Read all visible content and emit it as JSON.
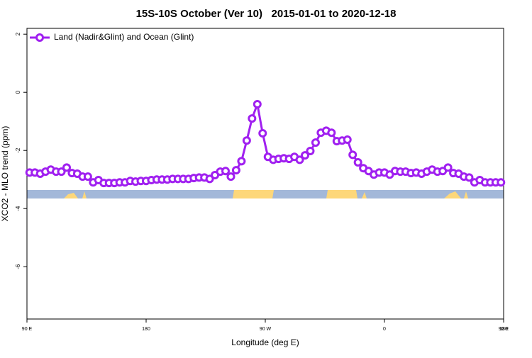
{
  "chart_data": {
    "type": "line",
    "title": "15S-10S October (Ver 10)   2015-01-01 to 2020-12-18",
    "x_label": "Longitude (deg E)",
    "y_label": "XCO2 - MLO trend (ppm)",
    "xlim": [
      90,
      450
    ],
    "xticks": [
      {
        "value": 90,
        "label": "90 E"
      },
      180,
      {
        "value": 270,
        "label": "90 W"
      },
      {
        "value": 360,
        "label": "0"
      },
      {
        "value": 450,
        "label": "90 E"
      },
      {
        "value": 540,
        "label": "180"
      }
    ],
    "ylim": [
      -7.8,
      2.2
    ],
    "yticks": [
      2,
      0,
      -2,
      -4,
      -6
    ],
    "legend": "top-left",
    "x": [
      92,
      96,
      100,
      104,
      108,
      112,
      116,
      120,
      124,
      128,
      132,
      136,
      140,
      144,
      148,
      152,
      156,
      160,
      164,
      168,
      172,
      176,
      180,
      184,
      188,
      192,
      196,
      200,
      204,
      208,
      212,
      216,
      220,
      224,
      228,
      232,
      236,
      240,
      244,
      248,
      252,
      256,
      260,
      264,
      268,
      272,
      276,
      280,
      284,
      288,
      292,
      296,
      300,
      304,
      308,
      312,
      316,
      320,
      324,
      328,
      332,
      336,
      340,
      344,
      348,
      352,
      356,
      360,
      364,
      368,
      372,
      376,
      380,
      384,
      388,
      392,
      396,
      400,
      404,
      408,
      412,
      416,
      420,
      424,
      428,
      432,
      436,
      440,
      444,
      448
    ],
    "series": [
      {
        "name": "Land (Nadir&Glint) and Ocean (Glint)",
        "color": "#a020f0",
        "values": [
          -2.76,
          -2.76,
          -2.8,
          -2.73,
          -2.66,
          -2.73,
          -2.73,
          -2.59,
          -2.78,
          -2.8,
          -2.9,
          -2.9,
          -3.1,
          -3.02,
          -3.12,
          -3.12,
          -3.12,
          -3.1,
          -3.1,
          -3.05,
          -3.07,
          -3.05,
          -3.05,
          -3.02,
          -3.0,
          -3.0,
          -3.0,
          -2.98,
          -2.98,
          -2.98,
          -2.98,
          -2.95,
          -2.93,
          -2.93,
          -2.98,
          -2.85,
          -2.73,
          -2.71,
          -2.9,
          -2.68,
          -2.37,
          -1.66,
          -0.9,
          -0.41,
          -1.41,
          -2.22,
          -2.32,
          -2.29,
          -2.27,
          -2.29,
          -2.22,
          -2.32,
          -2.17,
          -2.02,
          -1.73,
          -1.39,
          -1.32,
          -1.39,
          -1.68,
          -1.66,
          -1.63,
          -2.15,
          -2.41,
          -2.61,
          -2.71,
          -2.83,
          -2.76,
          -2.76,
          -2.83,
          -2.71,
          -2.73,
          -2.73,
          -2.78,
          -2.76,
          -2.8,
          -2.73,
          -2.66,
          -2.73,
          -2.71,
          -2.59,
          -2.78,
          -2.8,
          -2.9,
          -2.93,
          -3.1,
          -3.02,
          -3.1,
          -3.1,
          -3.1,
          -3.1
        ]
      }
    ]
  }
}
